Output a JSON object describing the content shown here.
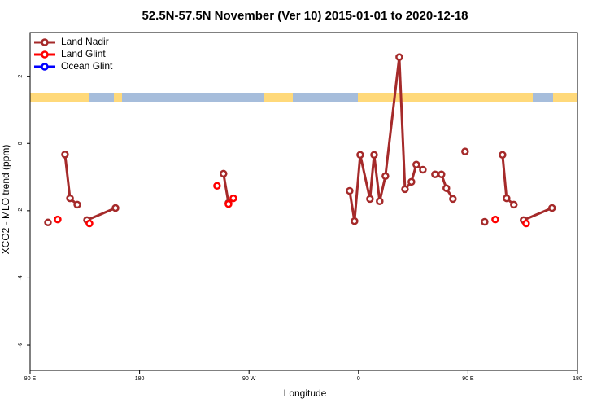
{
  "chart_data": {
    "type": "scatter",
    "title": "52.5N-57.5N November (Ver 10)   2015-01-01 to 2020-12-18",
    "x_label": "Longitude",
    "y_label": "XCO2 - MLO trend (ppm)",
    "xlim": [
      90,
      540
    ],
    "ylim": [
      -6.75,
      3.3
    ],
    "xticks": [
      {
        "value": 90,
        "label": "90 E"
      },
      180,
      {
        "value": 270,
        "label": "90 W"
      },
      {
        "value": 360,
        "label": "0"
      },
      {
        "value": 450,
        "label": "90 E"
      },
      {
        "value": 540,
        "label": "180"
      }
    ],
    "yticks": [
      -6,
      -4,
      -2,
      0,
      2
    ],
    "legend": "top-left",
    "series": [
      {
        "name": "Land Nadir",
        "color": "#a52a2a",
        "line": true,
        "x": [
          104.7,
          null,
          118.7,
          122.8,
          128.8,
          null,
          136.8,
          160.2,
          null,
          249,
          253.1,
          null,
          352.7,
          356.7,
          361.4,
          369.4,
          372.8,
          377.4,
          382.1,
          393.5,
          398.2,
          403.5,
          407.5,
          412.9,
          null,
          422.9,
          428.2,
          432.2,
          437.6,
          null,
          447.6,
          null,
          463.7,
          null,
          478.4,
          481.7,
          487.7,
          null,
          495.7,
          519.1
        ],
        "values": [
          -2.35,
          null,
          -0.33,
          -1.63,
          -1.82,
          null,
          -2.28,
          -1.92,
          null,
          -0.9,
          -1.77,
          null,
          -1.41,
          -2.31,
          -0.34,
          -1.65,
          -0.34,
          -1.72,
          -0.97,
          2.57,
          -1.36,
          -1.14,
          -0.63,
          -0.78,
          null,
          -0.92,
          -0.92,
          -1.33,
          -1.65,
          null,
          -0.24,
          null,
          -2.33,
          null,
          -0.34,
          -1.63,
          -1.82,
          null,
          -2.28,
          -1.92
        ]
      },
      {
        "name": "Land Glint",
        "color": "#ff0000",
        "line": false,
        "x": [
          112.7,
          138.8,
          243.7,
          253.1,
          257.1,
          472.4,
          497.8
        ],
        "values": [
          -2.26,
          -2.38,
          -1.26,
          -1.8,
          -1.63,
          -2.26,
          -2.38
        ]
      },
      {
        "name": "Ocean Glint",
        "color": "#0000ff",
        "line": false,
        "x": [],
        "values": []
      }
    ]
  }
}
